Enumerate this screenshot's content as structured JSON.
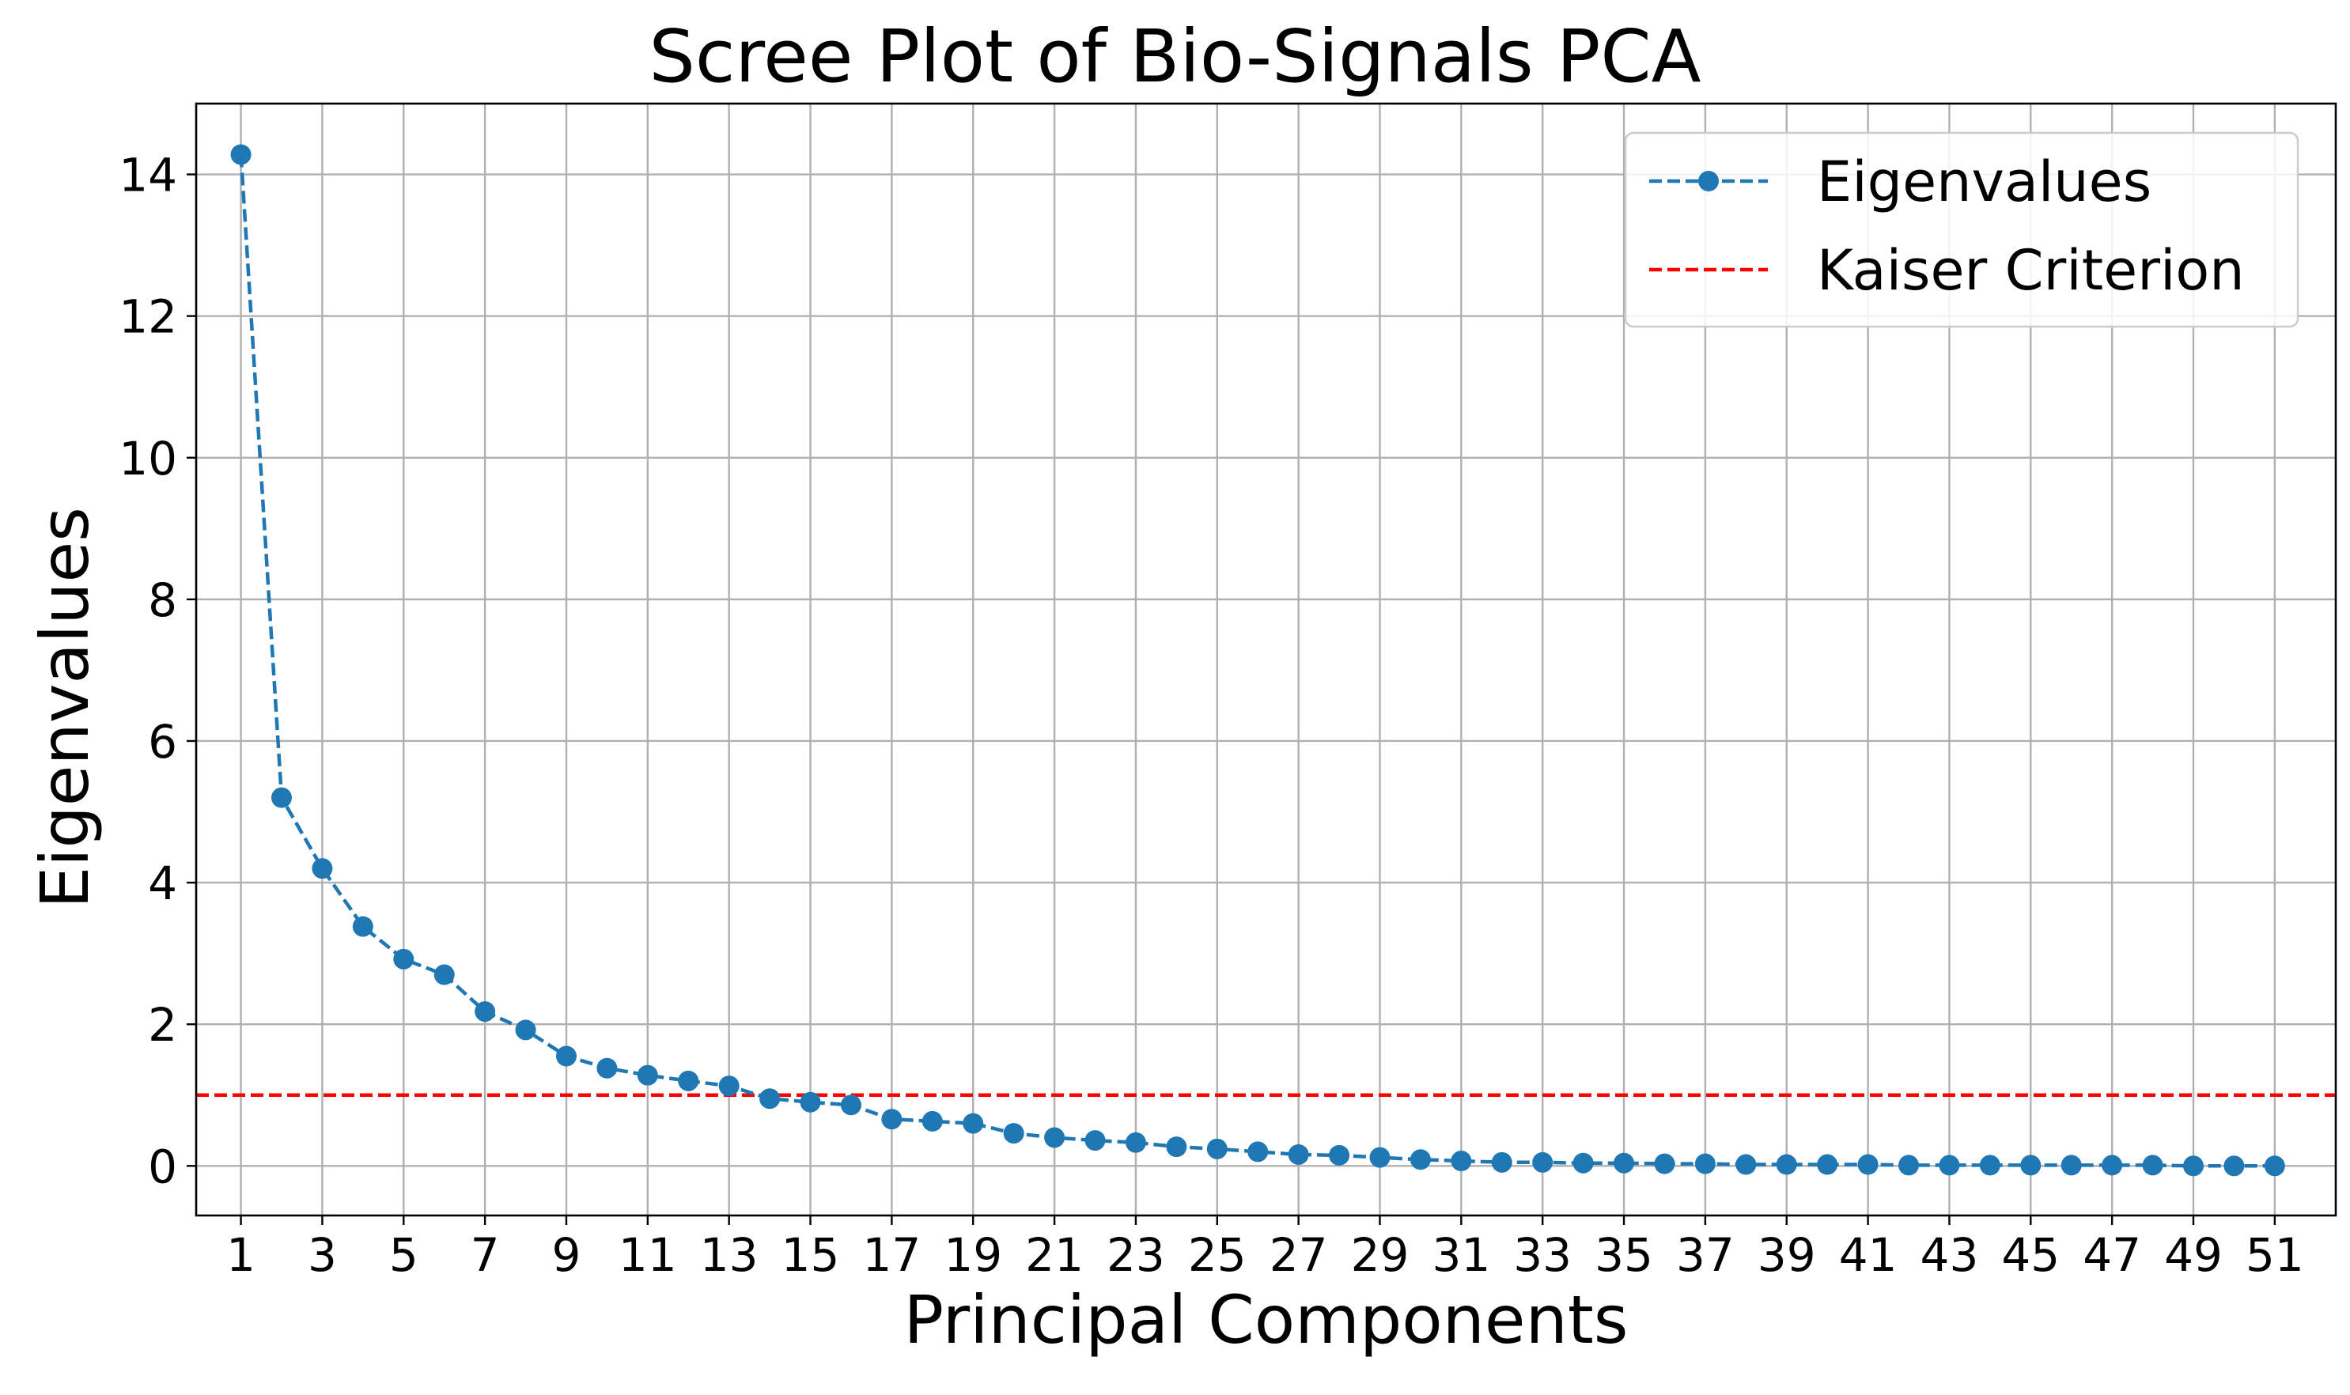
{
  "chart_data": {
    "type": "line",
    "title": "Scree Plot of Bio-Signals PCA",
    "xlabel": "Principal Components",
    "ylabel": "Eigenvalues",
    "x": [
      1,
      2,
      3,
      4,
      5,
      6,
      7,
      8,
      9,
      10,
      11,
      12,
      13,
      14,
      15,
      16,
      17,
      18,
      19,
      20,
      21,
      22,
      23,
      24,
      25,
      26,
      27,
      28,
      29,
      30,
      31,
      32,
      33,
      34,
      35,
      36,
      37,
      38,
      39,
      40,
      41,
      42,
      43,
      44,
      45,
      46,
      47,
      48,
      49,
      50,
      51
    ],
    "xticks": [
      "1",
      "3",
      "5",
      "7",
      "9",
      "11",
      "13",
      "15",
      "17",
      "19",
      "21",
      "23",
      "25",
      "27",
      "29",
      "31",
      "33",
      "35",
      "37",
      "39",
      "41",
      "43",
      "45",
      "47",
      "49",
      "51"
    ],
    "yticks": [
      "0",
      "2",
      "4",
      "6",
      "8",
      "10",
      "12",
      "14"
    ],
    "xlim": [
      -0.1,
      52.5
    ],
    "ylim": [
      -0.7,
      15.0
    ],
    "grid": true,
    "legend_position": "top-right",
    "series": [
      {
        "name": "Eigenvalues",
        "style": "dashed line with circle markers",
        "color": "#1f77b4",
        "values": [
          14.28,
          5.2,
          4.2,
          3.38,
          2.92,
          2.7,
          2.18,
          1.92,
          1.55,
          1.38,
          1.28,
          1.2,
          1.13,
          0.95,
          0.9,
          0.86,
          0.66,
          0.63,
          0.6,
          0.46,
          0.4,
          0.36,
          0.33,
          0.27,
          0.24,
          0.2,
          0.16,
          0.15,
          0.12,
          0.09,
          0.07,
          0.05,
          0.05,
          0.04,
          0.04,
          0.03,
          0.03,
          0.02,
          0.02,
          0.02,
          0.02,
          0.01,
          0.01,
          0.01,
          0.01,
          0.01,
          0.01,
          0.01,
          0.0,
          0.0,
          0.0
        ]
      },
      {
        "name": "Kaiser Criterion",
        "style": "dashed horizontal line",
        "color": "#ff0000",
        "y": 1.0
      }
    ]
  }
}
